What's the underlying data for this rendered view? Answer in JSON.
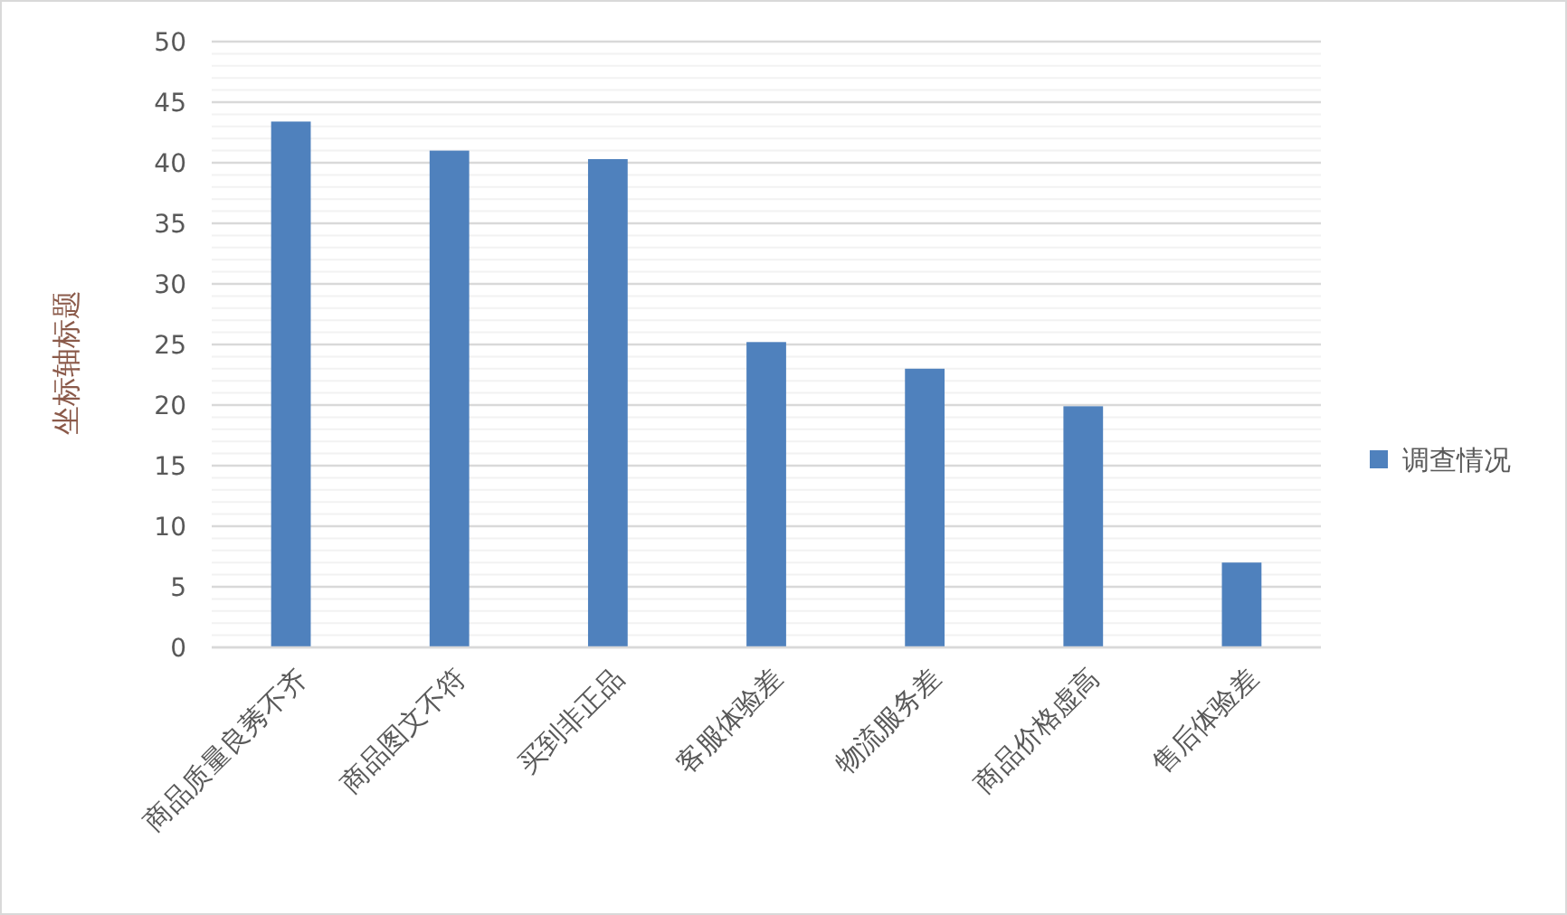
{
  "chart_data": {
    "type": "bar",
    "ylabel": "坐标轴标题",
    "categories": [
      "商品质量良莠不齐",
      "商品图文不符",
      "买到非正品",
      "客服体验差",
      "物流服务差",
      "商品价格虚高",
      "售后体验差"
    ],
    "series": [
      {
        "name": "调查情况",
        "color": "#4f81bd",
        "values": [
          43.4,
          41.0,
          40.3,
          25.2,
          23.0,
          19.9,
          7.0
        ]
      }
    ],
    "ylim": [
      0,
      50
    ],
    "yticks": [
      0,
      {
        "value": 1,
        "label": null
      },
      {
        "value": 2,
        "label": null
      },
      {
        "value": 3,
        "label": null
      },
      {
        "value": 4,
        "label": null
      },
      5,
      {
        "value": 6,
        "label": null
      },
      {
        "value": 7,
        "label": null
      },
      {
        "value": 8,
        "label": null
      },
      {
        "value": 9,
        "label": null
      },
      10,
      {
        "value": 11,
        "label": null
      },
      {
        "value": 12,
        "label": null
      },
      {
        "value": 13,
        "label": null
      },
      {
        "value": 14,
        "label": null
      },
      15,
      {
        "value": 16,
        "label": null
      },
      {
        "value": 17,
        "label": null
      },
      {
        "value": 18,
        "label": null
      },
      {
        "value": 19,
        "label": null
      },
      20,
      {
        "value": 21,
        "label": null
      },
      {
        "value": 22,
        "label": null
      },
      {
        "value": 23,
        "label": null
      },
      {
        "value": 24,
        "label": null
      },
      25,
      {
        "value": 26,
        "label": null
      },
      {
        "value": 27,
        "label": null
      },
      {
        "value": 28,
        "label": null
      },
      {
        "value": 29,
        "label": null
      },
      30,
      {
        "value": 31,
        "label": null
      },
      {
        "value": 32,
        "label": null
      },
      {
        "value": 33,
        "label": null
      },
      {
        "value": 34,
        "label": null
      },
      35,
      {
        "value": 36,
        "label": null
      },
      {
        "value": 37,
        "label": null
      },
      {
        "value": 38,
        "label": null
      },
      {
        "value": 39,
        "label": null
      },
      40,
      {
        "value": 41,
        "label": null
      },
      {
        "value": 42,
        "label": null
      },
      {
        "value": 43,
        "label": null
      },
      {
        "value": 44,
        "label": null
      },
      45,
      {
        "value": 46,
        "label": null
      },
      {
        "value": 47,
        "label": null
      },
      {
        "value": 48,
        "label": null
      },
      {
        "value": 49,
        "label": null
      },
      50
    ],
    "grid": true,
    "legend": "right"
  }
}
